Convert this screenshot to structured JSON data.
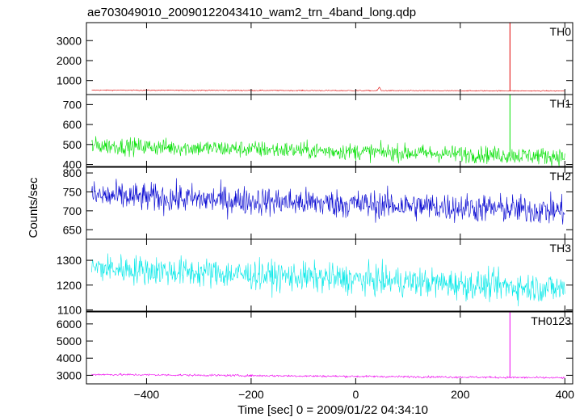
{
  "chart_data": {
    "type": "line",
    "title": "ae703049010_20090122043410_wam2_trn_4band_long.qdp",
    "xlabel": "Time [sec] 0 = 2009/01/22 04:34:10",
    "ylabel": "Counts/sec",
    "xlim": [
      -515,
      415
    ],
    "x_ticks": [
      -400,
      -200,
      0,
      200,
      400
    ],
    "x_ticklabels": [
      "−400",
      "−200",
      "0",
      "200",
      "400"
    ],
    "grid": false,
    "legend": "none",
    "sample_step": 1,
    "panels": [
      {
        "name": "TH0",
        "color": "#e00000",
        "ylim": [
          300,
          3900
        ],
        "yticks": [
          1000,
          2000,
          3000
        ],
        "baseline": {
          "start": 520,
          "end": 480
        },
        "noise": 18,
        "features": [
          {
            "x": 295,
            "peak": 3900,
            "type": "spike"
          },
          {
            "x": 45,
            "peak": 700,
            "type": "bump"
          }
        ]
      },
      {
        "name": "TH1",
        "color": "#00e000",
        "ylim": [
          390,
          750
        ],
        "yticks": [
          400,
          500,
          600,
          700
        ],
        "baseline": {
          "start": 495,
          "end": 440
        },
        "noise": 30,
        "features": [
          {
            "x": 295,
            "peak": 750,
            "type": "spike"
          }
        ]
      },
      {
        "name": "TH2",
        "color": "#0000d0",
        "ylim": [
          625,
          815
        ],
        "yticks": [
          650,
          700,
          750,
          800
        ],
        "baseline": {
          "start": 740,
          "end": 700
        },
        "noise": 27,
        "features": []
      },
      {
        "name": "TH3",
        "color": "#00e8e8",
        "ylim": [
          1095,
          1385
        ],
        "yticks": [
          1100,
          1200,
          1300
        ],
        "baseline": {
          "start": 1270,
          "end": 1185
        },
        "noise": 42,
        "features": []
      },
      {
        "name": "TH0123",
        "color": "#ee00ee",
        "ylim": [
          2500,
          6700
        ],
        "yticks": [
          3000,
          4000,
          5000,
          6000
        ],
        "baseline": {
          "start": 3050,
          "end": 2850
        },
        "noise": 45,
        "features": [
          {
            "x": 295,
            "peak": 6700,
            "type": "spike"
          }
        ]
      }
    ]
  }
}
